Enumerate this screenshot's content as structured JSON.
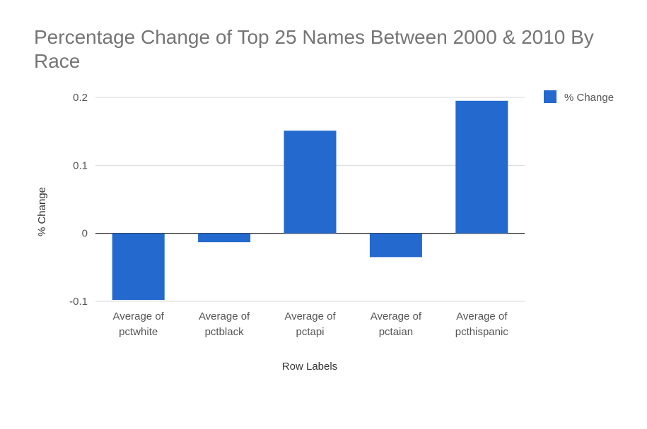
{
  "chart_data": {
    "type": "bar",
    "title": "Percentage Change of Top 25 Names Between 2000 & 2010 By Race",
    "xlabel": "Row Labels",
    "ylabel": "% Change",
    "categories": [
      [
        "Average of",
        "pctwhite"
      ],
      [
        "Average of",
        "pctblack"
      ],
      [
        "Average of",
        "pctapi"
      ],
      [
        "Average of",
        "pctaian"
      ],
      [
        "Average of",
        "pcthispanic"
      ]
    ],
    "series": [
      {
        "name": "% Change",
        "color": "#2369ce",
        "values": [
          -0.098,
          -0.013,
          0.151,
          -0.035,
          0.195
        ]
      }
    ],
    "ylim": [
      -0.1,
      0.2
    ],
    "yticks": [
      -0.1,
      0,
      0.1,
      0.2
    ],
    "ytick_labels": [
      "-0.1",
      "0",
      "0.1",
      "0.2"
    ],
    "grid": true,
    "legend_position": "top-right"
  }
}
